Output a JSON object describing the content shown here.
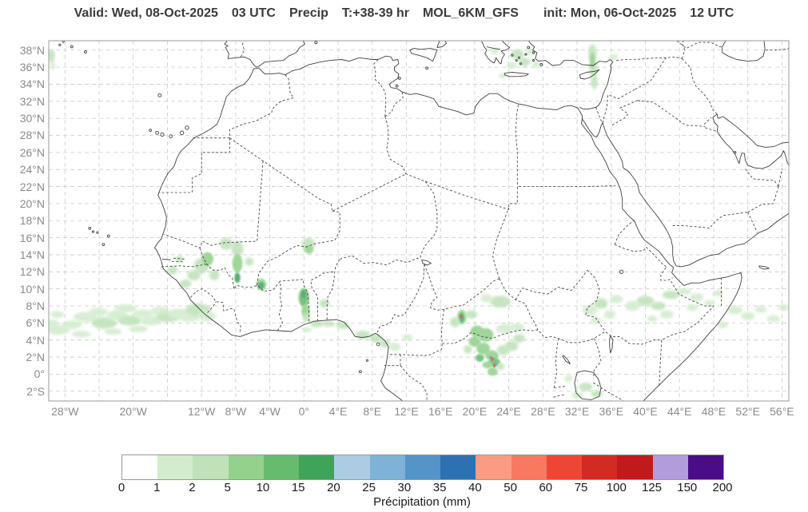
{
  "title": {
    "parts": [
      "Valid: Wed, 08-Oct-2025",
      "03 UTC",
      "Precip",
      "T:+38-39 hr",
      "MOL_6KM_GFS",
      "init: Mon, 06-Oct-2025",
      "12 UTC"
    ]
  },
  "map": {
    "extent": {
      "lon_min": -29.9,
      "lon_max": 56.8,
      "lat_min": -3.1,
      "lat_max": 39.1
    },
    "lat_ticks": [
      {
        "deg": 38,
        "label": "38°N"
      },
      {
        "deg": 36,
        "label": "36°N"
      },
      {
        "deg": 34,
        "label": "34°N"
      },
      {
        "deg": 32,
        "label": "32°N"
      },
      {
        "deg": 30,
        "label": "30°N"
      },
      {
        "deg": 28,
        "label": "28°N"
      },
      {
        "deg": 26,
        "label": "26°N"
      },
      {
        "deg": 24,
        "label": "24°N"
      },
      {
        "deg": 22,
        "label": "22°N"
      },
      {
        "deg": 20,
        "label": "20°N"
      },
      {
        "deg": 18,
        "label": "18°N"
      },
      {
        "deg": 16,
        "label": "16°N"
      },
      {
        "deg": 14,
        "label": "14°N"
      },
      {
        "deg": 12,
        "label": "12°N"
      },
      {
        "deg": 10,
        "label": "10°N"
      },
      {
        "deg": 8,
        "label": "8°N"
      },
      {
        "deg": 6,
        "label": "6°N"
      },
      {
        "deg": 4,
        "label": "4°N"
      },
      {
        "deg": 2,
        "label": "2°N"
      },
      {
        "deg": 0,
        "label": "0°"
      },
      {
        "deg": -2,
        "label": "2°S"
      }
    ],
    "lon_grid": [
      -28,
      -24,
      -20,
      -16,
      -12,
      -8,
      -4,
      0,
      4,
      8,
      12,
      16,
      20,
      24,
      28,
      32,
      36,
      40,
      44,
      48,
      52,
      56
    ],
    "lon_ticks": [
      {
        "deg": -28,
        "label": "28°W"
      },
      {
        "deg": -20,
        "label": "20°W"
      },
      {
        "deg": -12,
        "label": "12°W"
      },
      {
        "deg": -8,
        "label": "8°W"
      },
      {
        "deg": -4,
        "label": "4°W"
      },
      {
        "deg": 0,
        "label": "0°"
      },
      {
        "deg": 4,
        "label": "4°E"
      },
      {
        "deg": 8,
        "label": "8°E"
      },
      {
        "deg": 12,
        "label": "12°E"
      },
      {
        "deg": 16,
        "label": "16°E"
      },
      {
        "deg": 20,
        "label": "20°E"
      },
      {
        "deg": 24,
        "label": "24°E"
      },
      {
        "deg": 28,
        "label": "28°E"
      },
      {
        "deg": 32,
        "label": "32°E"
      },
      {
        "deg": 36,
        "label": "36°E"
      },
      {
        "deg": 40,
        "label": "40°E"
      },
      {
        "deg": 44,
        "label": "44°E"
      },
      {
        "deg": 48,
        "label": "48°E"
      },
      {
        "deg": 52,
        "label": "52°E"
      },
      {
        "deg": 56,
        "label": "56°E"
      }
    ]
  },
  "colorbar": {
    "label": "Précipitation (mm)",
    "ticks": [
      "0",
      "1",
      "2",
      "5",
      "10",
      "15",
      "20",
      "25",
      "30",
      "35",
      "40",
      "50",
      "60",
      "75",
      "100",
      "125",
      "150",
      "200"
    ],
    "colors": [
      "#ffffff",
      "#d3ecce",
      "#c0e2ba",
      "#94d18d",
      "#66bb6e",
      "#3fa45a",
      "#abcce3",
      "#7fb2d7",
      "#5494c8",
      "#2d71b3",
      "#fa9c83",
      "#f87861",
      "#ee4634",
      "#d42a24",
      "#c01a1c",
      "#b29ddc",
      "#4b0d86"
    ]
  },
  "chart_data": {
    "type": "precip_map",
    "units": "mm",
    "level_to_mm": {
      "1": "1-2",
      "2": "2-5",
      "3": "5-10",
      "4": "10-15",
      "5": "15-20",
      "b": "25-40",
      "r": "60-75"
    },
    "precip_cells": [
      [
        -28.8,
        5.2,
        1.4,
        0.6,
        1
      ],
      [
        -27.2,
        5.8,
        1.2,
        0.5,
        1
      ],
      [
        -25.6,
        6.7,
        1.4,
        0.6,
        1
      ],
      [
        -24.1,
        7.3,
        1.1,
        0.5,
        1
      ],
      [
        -23.4,
        6.0,
        1.5,
        0.7,
        2
      ],
      [
        -21.9,
        6.9,
        1.2,
        0.6,
        1
      ],
      [
        -20.9,
        7.7,
        1.3,
        0.5,
        1
      ],
      [
        -20.4,
        6.3,
        1.4,
        0.6,
        2
      ],
      [
        -18.9,
        7.1,
        1.2,
        0.5,
        1
      ],
      [
        -17.9,
        6.3,
        1.3,
        0.6,
        1
      ],
      [
        -16.9,
        7.4,
        1.1,
        0.5,
        1
      ],
      [
        -15.9,
        6.7,
        1.4,
        0.6,
        2
      ],
      [
        -14.7,
        7.1,
        1.2,
        0.6,
        1
      ],
      [
        -13.4,
        6.6,
        1.1,
        0.5,
        1
      ],
      [
        -26.1,
        4.7,
        1.1,
        0.4,
        1
      ],
      [
        -22.4,
        5.0,
        1.0,
        0.4,
        1
      ],
      [
        -19.4,
        5.3,
        1.1,
        0.4,
        1
      ],
      [
        -28.9,
        7.0,
        0.8,
        0.4,
        1
      ],
      [
        -12.4,
        7.5,
        1.5,
        0.8,
        2
      ],
      [
        -11.4,
        6.8,
        1.1,
        0.6,
        1
      ],
      [
        -29.5,
        5.9,
        0.8,
        0.5,
        1
      ],
      [
        -12.0,
        12.7,
        0.9,
        0.9,
        2
      ],
      [
        -11.3,
        13.5,
        0.7,
        0.8,
        3
      ],
      [
        -12.9,
        11.6,
        0.8,
        0.6,
        2
      ],
      [
        -13.9,
        10.6,
        0.7,
        0.5,
        2
      ],
      [
        -10.5,
        11.6,
        0.6,
        0.6,
        2
      ],
      [
        -9.1,
        15.3,
        0.8,
        0.7,
        2
      ],
      [
        -7.8,
        14.7,
        0.7,
        0.9,
        2
      ],
      [
        -7.8,
        13.0,
        0.6,
        1.1,
        3
      ],
      [
        -7.8,
        11.3,
        0.35,
        0.6,
        5
      ],
      [
        -6.4,
        13.2,
        0.5,
        0.5,
        2
      ],
      [
        -15.4,
        12.2,
        0.6,
        0.5,
        2
      ],
      [
        -14.6,
        13.5,
        0.5,
        0.4,
        2
      ],
      [
        0.5,
        15.2,
        0.8,
        0.8,
        2
      ],
      [
        0.6,
        14.6,
        0.5,
        0.5,
        3
      ],
      [
        -5.0,
        10.5,
        0.6,
        0.7,
        3
      ],
      [
        -5.0,
        10.4,
        0.35,
        0.4,
        5
      ],
      [
        0.0,
        9.0,
        0.65,
        1.1,
        3
      ],
      [
        -0.05,
        8.9,
        0.45,
        0.9,
        4
      ],
      [
        -0.05,
        9.4,
        0.28,
        0.5,
        5
      ],
      [
        0.2,
        7.4,
        0.5,
        0.8,
        3
      ],
      [
        0.3,
        6.6,
        0.45,
        0.5,
        2
      ],
      [
        2.4,
        8.3,
        0.6,
        0.5,
        2
      ],
      [
        1.5,
        5.9,
        0.8,
        0.4,
        2
      ],
      [
        2.9,
        5.9,
        0.7,
        0.35,
        2
      ],
      [
        4.5,
        5.7,
        0.8,
        0.4,
        2
      ],
      [
        0.3,
        5.2,
        0.6,
        0.3,
        1
      ],
      [
        6.9,
        4.6,
        0.9,
        0.5,
        2
      ],
      [
        8.4,
        4.2,
        0.7,
        0.5,
        2
      ],
      [
        9.5,
        3.6,
        0.6,
        0.5,
        2
      ],
      [
        10.6,
        3.2,
        0.7,
        0.5,
        1
      ],
      [
        12.1,
        4.3,
        0.6,
        0.4,
        1
      ],
      [
        18.5,
        6.7,
        0.55,
        0.85,
        3
      ],
      [
        18.45,
        6.6,
        0.3,
        0.55,
        5
      ],
      [
        17.7,
        6.1,
        0.6,
        0.6,
        2
      ],
      [
        19.6,
        7.0,
        0.7,
        0.5,
        2
      ],
      [
        23.0,
        8.5,
        1.2,
        0.7,
        2
      ],
      [
        21.4,
        8.9,
        0.7,
        0.5,
        1
      ],
      [
        20.3,
        5.0,
        0.8,
        0.7,
        3
      ],
      [
        21.3,
        4.6,
        0.9,
        0.8,
        3
      ],
      [
        20.0,
        3.8,
        0.7,
        0.6,
        3
      ],
      [
        21.0,
        3.0,
        0.8,
        0.7,
        3
      ],
      [
        22.0,
        2.2,
        0.8,
        0.6,
        3
      ],
      [
        22.3,
        1.4,
        0.7,
        0.5,
        4
      ],
      [
        21.5,
        1.1,
        0.6,
        0.4,
        3
      ],
      [
        23.3,
        2.8,
        0.7,
        0.6,
        2
      ],
      [
        24.3,
        3.3,
        0.8,
        0.6,
        2
      ],
      [
        25.2,
        4.2,
        0.7,
        0.5,
        2
      ],
      [
        19.2,
        2.9,
        0.5,
        0.5,
        2
      ],
      [
        20.6,
        1.9,
        0.5,
        0.45,
        4
      ],
      [
        23.5,
        5.3,
        1.0,
        0.6,
        1
      ],
      [
        25.0,
        5.5,
        0.8,
        0.5,
        1
      ],
      [
        22.1,
        0.3,
        0.6,
        0.5,
        3
      ],
      [
        23.0,
        0.9,
        0.5,
        0.4,
        2
      ],
      [
        33.0,
        -1.5,
        0.8,
        0.5,
        2
      ],
      [
        34.3,
        -2.3,
        0.7,
        0.4,
        2
      ],
      [
        32.0,
        -2.5,
        0.6,
        0.4,
        1
      ],
      [
        31.0,
        -0.5,
        0.5,
        0.4,
        1
      ],
      [
        33.5,
        7.5,
        0.9,
        0.6,
        1
      ],
      [
        34.8,
        8.3,
        0.8,
        0.6,
        2
      ],
      [
        35.8,
        7.0,
        0.7,
        0.5,
        1
      ],
      [
        34.2,
        6.3,
        0.6,
        0.4,
        1
      ],
      [
        36.6,
        8.8,
        0.8,
        0.5,
        1
      ],
      [
        38.5,
        8.0,
        0.9,
        0.6,
        1
      ],
      [
        40.0,
        8.6,
        1.0,
        0.6,
        2
      ],
      [
        41.5,
        8.0,
        0.9,
        0.5,
        2
      ],
      [
        43.0,
        9.3,
        1.0,
        0.5,
        2
      ],
      [
        44.5,
        9.7,
        0.9,
        0.4,
        1
      ],
      [
        46.0,
        9.0,
        0.8,
        0.5,
        1
      ],
      [
        42.5,
        7.0,
        0.8,
        0.5,
        1
      ],
      [
        40.8,
        6.5,
        0.6,
        0.4,
        1
      ],
      [
        45.5,
        7.8,
        0.7,
        0.4,
        1
      ],
      [
        47.5,
        8.3,
        0.6,
        0.4,
        1
      ],
      [
        48.5,
        9.5,
        0.6,
        0.4,
        1
      ],
      [
        50.5,
        7.5,
        0.9,
        0.5,
        1
      ],
      [
        52.0,
        6.8,
        0.8,
        0.5,
        1
      ],
      [
        53.5,
        7.6,
        0.7,
        0.4,
        1
      ],
      [
        55.0,
        6.5,
        0.8,
        0.4,
        1
      ],
      [
        56.2,
        7.8,
        0.6,
        0.4,
        1
      ],
      [
        49.0,
        5.8,
        0.7,
        0.4,
        1
      ],
      [
        25.0,
        37.5,
        0.8,
        0.6,
        2
      ],
      [
        25.8,
        36.6,
        0.7,
        0.5,
        2
      ],
      [
        24.3,
        36.2,
        0.6,
        0.4,
        1
      ],
      [
        26.5,
        37.8,
        0.5,
        0.4,
        1
      ],
      [
        23.3,
        35.0,
        0.5,
        0.3,
        1
      ],
      [
        27.2,
        36.3,
        0.5,
        0.4,
        1
      ],
      [
        33.8,
        37.6,
        0.5,
        1.1,
        2
      ],
      [
        33.9,
        35.9,
        0.5,
        1.0,
        2
      ],
      [
        34.0,
        34.3,
        0.4,
        0.9,
        2
      ],
      [
        33.8,
        36.8,
        0.3,
        0.9,
        3
      ],
      [
        36.3,
        37.2,
        0.5,
        0.4,
        1
      ],
      [
        22.4,
        37.9,
        0.5,
        0.4,
        1
      ],
      [
        -29.6,
        37.3,
        0.4,
        0.8,
        2
      ],
      [
        -29.4,
        36.2,
        0.3,
        0.5,
        1
      ]
    ],
    "max_cores": [
      [
        -5.0,
        10.4,
        "b"
      ],
      [
        0.0,
        9.3,
        "b"
      ],
      [
        18.45,
        6.75,
        "r"
      ],
      [
        18.5,
        6.45,
        "b"
      ],
      [
        22.05,
        1.8,
        "r"
      ],
      [
        21.85,
        1.95,
        "b"
      ],
      [
        22.3,
        1.0,
        "r"
      ],
      [
        22.5,
        1.15,
        "b"
      ]
    ]
  }
}
